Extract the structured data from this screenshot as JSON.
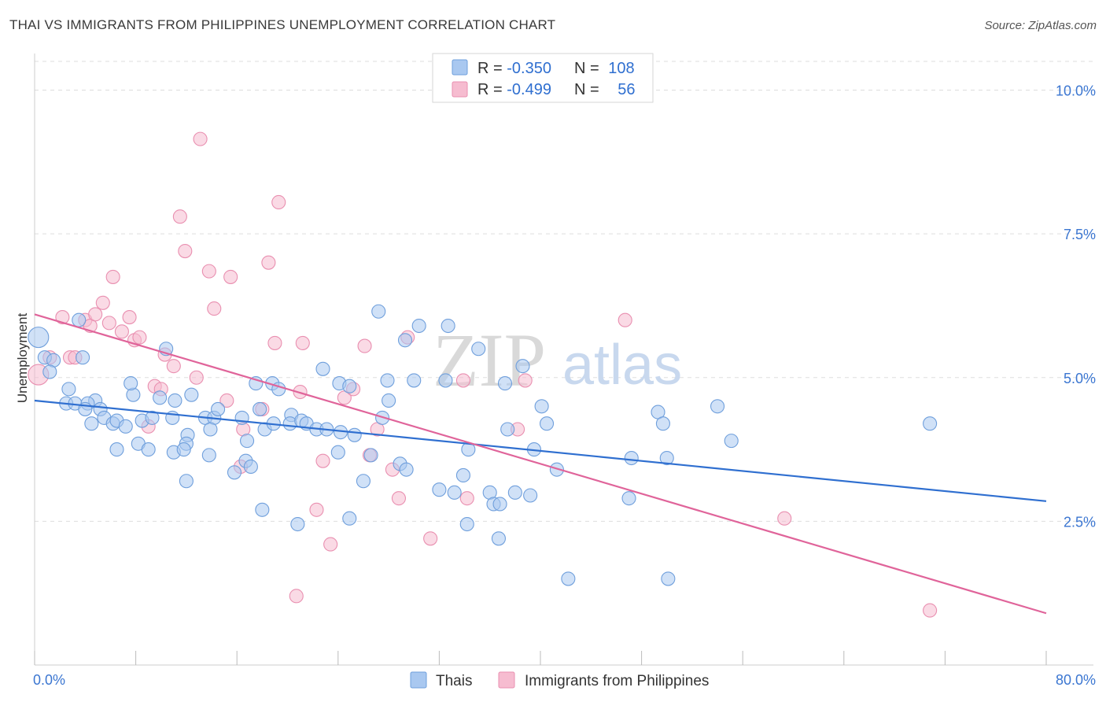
{
  "title": "THAI VS IMMIGRANTS FROM PHILIPPINES UNEMPLOYMENT CORRELATION CHART",
  "source": "Source: ZipAtlas.com",
  "watermark": {
    "zip": "ZIP",
    "atlas": "atlas"
  },
  "colors": {
    "thais_fill": "#a9c8f0",
    "thais_stroke": "#6f9fdc",
    "thais_line": "#2f6fd0",
    "phil_fill": "#f6bcd0",
    "phil_stroke": "#e98fb0",
    "phil_line": "#e0649a",
    "grid": "#dddddd",
    "tick_label": "#3b76d1"
  },
  "legend": {
    "rows": [
      {
        "r_label": "R = ",
        "r_value": "-0.350",
        "n_label": "N = ",
        "n_value": "108"
      },
      {
        "r_label": "R = ",
        "r_value": "-0.499",
        "n_label": "N = ",
        "n_value": "56"
      }
    ]
  },
  "chart_data": {
    "type": "scatter",
    "title": "THAI VS IMMIGRANTS FROM PHILIPPINES UNEMPLOYMENT CORRELATION CHART",
    "xlabel": "",
    "ylabel": "Unemployment",
    "xlim": [
      0,
      80
    ],
    "ylim": [
      0,
      10.5
    ],
    "x_tick_labels": [
      "0.0%",
      "80.0%"
    ],
    "y_ticks": [
      2.5,
      5.0,
      7.5,
      10.0
    ],
    "y_tick_labels": [
      "2.5%",
      "5.0%",
      "7.5%",
      "10.0%"
    ],
    "grid": true,
    "legend_position": "bottom-center",
    "series": [
      {
        "name": "Thais",
        "r": -0.35,
        "n": 108,
        "trend": {
          "x": [
            0,
            80
          ],
          "y": [
            4.6,
            2.85
          ]
        },
        "points": [
          [
            0.3,
            5.7
          ],
          [
            0.8,
            5.35
          ],
          [
            1.5,
            5.3
          ],
          [
            1.2,
            5.1
          ],
          [
            3.5,
            6.0
          ],
          [
            3.8,
            5.35
          ],
          [
            2.7,
            4.8
          ],
          [
            2.5,
            4.55
          ],
          [
            3.2,
            4.55
          ],
          [
            4.8,
            4.6
          ],
          [
            4.2,
            4.55
          ],
          [
            4.0,
            4.45
          ],
          [
            5.2,
            4.45
          ],
          [
            5.5,
            4.3
          ],
          [
            4.5,
            4.2
          ],
          [
            6.2,
            4.2
          ],
          [
            6.5,
            4.25
          ],
          [
            7.2,
            4.15
          ],
          [
            7.8,
            4.7
          ],
          [
            7.6,
            4.9
          ],
          [
            8.5,
            4.25
          ],
          [
            9.3,
            4.3
          ],
          [
            8.2,
            3.85
          ],
          [
            9.0,
            3.75
          ],
          [
            6.5,
            3.75
          ],
          [
            10.4,
            5.5
          ],
          [
            9.9,
            4.65
          ],
          [
            10.9,
            4.3
          ],
          [
            11.1,
            4.6
          ],
          [
            12.4,
            4.7
          ],
          [
            12.1,
            4.0
          ],
          [
            12.0,
            3.85
          ],
          [
            11.0,
            3.7
          ],
          [
            11.8,
            3.75
          ],
          [
            13.5,
            4.3
          ],
          [
            14.2,
            4.3
          ],
          [
            14.5,
            4.45
          ],
          [
            13.9,
            4.1
          ],
          [
            13.8,
            3.65
          ],
          [
            16.4,
            4.3
          ],
          [
            17.5,
            4.9
          ],
          [
            16.8,
            3.9
          ],
          [
            17.8,
            4.45
          ],
          [
            16.7,
            3.55
          ],
          [
            15.8,
            3.35
          ],
          [
            17.1,
            3.45
          ],
          [
            18.2,
            4.1
          ],
          [
            18.8,
            4.9
          ],
          [
            19.3,
            4.8
          ],
          [
            18.9,
            4.2
          ],
          [
            20.3,
            4.35
          ],
          [
            20.2,
            4.2
          ],
          [
            21.1,
            4.25
          ],
          [
            22.8,
            5.15
          ],
          [
            21.5,
            4.2
          ],
          [
            22.3,
            4.1
          ],
          [
            23.1,
            4.1
          ],
          [
            24.1,
            4.9
          ],
          [
            24.9,
            4.85
          ],
          [
            24.2,
            4.05
          ],
          [
            25.3,
            4.0
          ],
          [
            27.2,
            6.15
          ],
          [
            28.0,
            4.6
          ],
          [
            27.5,
            4.3
          ],
          [
            26.6,
            3.65
          ],
          [
            28.9,
            3.5
          ],
          [
            26.0,
            3.2
          ],
          [
            27.9,
            4.95
          ],
          [
            29.4,
            3.4
          ],
          [
            29.3,
            5.65
          ],
          [
            30.0,
            4.95
          ],
          [
            30.4,
            5.9
          ],
          [
            32.7,
            5.9
          ],
          [
            32.5,
            4.95
          ],
          [
            32.0,
            3.05
          ],
          [
            33.2,
            3.0
          ],
          [
            34.3,
            3.75
          ],
          [
            33.9,
            3.3
          ],
          [
            35.1,
            5.5
          ],
          [
            36.0,
            3.0
          ],
          [
            36.3,
            2.8
          ],
          [
            36.7,
            2.2
          ],
          [
            37.2,
            4.9
          ],
          [
            37.4,
            4.1
          ],
          [
            38.6,
            5.2
          ],
          [
            38.0,
            3.0
          ],
          [
            39.5,
            3.75
          ],
          [
            40.1,
            4.5
          ],
          [
            40.5,
            4.2
          ],
          [
            39.2,
            2.95
          ],
          [
            41.3,
            3.4
          ],
          [
            42.2,
            1.5
          ],
          [
            47.2,
            3.6
          ],
          [
            47.0,
            2.9
          ],
          [
            49.3,
            4.4
          ],
          [
            49.7,
            4.2
          ],
          [
            50.0,
            3.6
          ],
          [
            50.1,
            1.5
          ],
          [
            54.0,
            4.5
          ],
          [
            55.1,
            3.9
          ],
          [
            70.8,
            4.2
          ],
          [
            12.0,
            3.2
          ],
          [
            18.0,
            2.7
          ],
          [
            20.8,
            2.45
          ],
          [
            24.9,
            2.55
          ],
          [
            34.2,
            2.45
          ],
          [
            24.0,
            3.7
          ],
          [
            36.8,
            2.8
          ]
        ]
      },
      {
        "name": "Immigrants from Philippines",
        "r": -0.499,
        "n": 56,
        "trend": {
          "x": [
            0,
            80
          ],
          "y": [
            6.1,
            0.9
          ]
        },
        "points": [
          [
            0.3,
            5.05
          ],
          [
            1.2,
            5.35
          ],
          [
            2.2,
            6.05
          ],
          [
            2.8,
            5.35
          ],
          [
            3.2,
            5.35
          ],
          [
            4.0,
            6.0
          ],
          [
            4.4,
            5.9
          ],
          [
            4.8,
            6.1
          ],
          [
            5.4,
            6.3
          ],
          [
            5.9,
            5.95
          ],
          [
            6.2,
            6.75
          ],
          [
            6.9,
            5.8
          ],
          [
            7.5,
            6.05
          ],
          [
            7.9,
            5.65
          ],
          [
            8.3,
            5.7
          ],
          [
            9.0,
            4.15
          ],
          [
            9.5,
            4.85
          ],
          [
            10.0,
            4.8
          ],
          [
            10.3,
            5.4
          ],
          [
            11.0,
            5.2
          ],
          [
            11.5,
            7.8
          ],
          [
            11.9,
            7.2
          ],
          [
            12.8,
            5.0
          ],
          [
            13.1,
            9.15
          ],
          [
            13.8,
            6.85
          ],
          [
            14.2,
            6.2
          ],
          [
            15.2,
            4.6
          ],
          [
            15.5,
            6.75
          ],
          [
            16.3,
            3.45
          ],
          [
            16.5,
            4.1
          ],
          [
            18.0,
            4.45
          ],
          [
            18.5,
            7.0
          ],
          [
            19.0,
            5.6
          ],
          [
            19.3,
            8.05
          ],
          [
            21.2,
            5.6
          ],
          [
            21.0,
            4.75
          ],
          [
            22.8,
            3.55
          ],
          [
            22.3,
            2.7
          ],
          [
            23.4,
            2.1
          ],
          [
            20.7,
            1.2
          ],
          [
            24.5,
            4.65
          ],
          [
            25.2,
            4.8
          ],
          [
            26.1,
            5.55
          ],
          [
            26.5,
            3.65
          ],
          [
            27.1,
            4.1
          ],
          [
            28.3,
            3.4
          ],
          [
            28.8,
            2.9
          ],
          [
            29.5,
            5.7
          ],
          [
            31.3,
            2.2
          ],
          [
            33.9,
            4.95
          ],
          [
            34.2,
            2.9
          ],
          [
            38.2,
            4.1
          ],
          [
            38.8,
            4.95
          ],
          [
            46.7,
            6.0
          ],
          [
            59.3,
            2.55
          ],
          [
            70.8,
            0.95
          ]
        ]
      }
    ]
  }
}
